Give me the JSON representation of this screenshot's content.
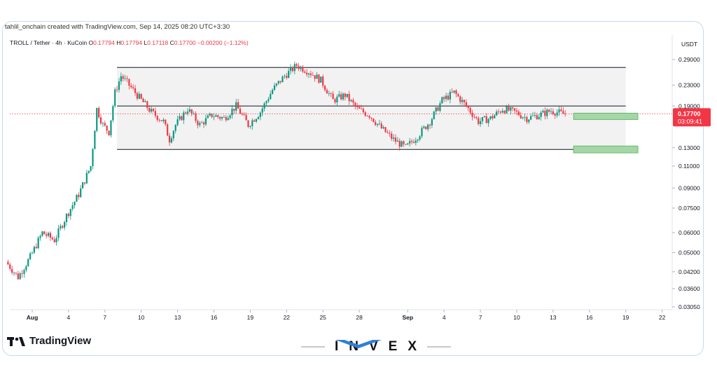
{
  "header": {
    "credit": "tahlil_onchain created with TradingView.com, Sep 14, 2025 08:20 UTC+3:30"
  },
  "legend": {
    "symbol": "TROLL / Tether · 4h · KuCoin",
    "open_label": "O",
    "open": "0.17794",
    "high_label": "H",
    "high": "0.17794",
    "low_label": "L",
    "low": "0.17118",
    "close_label": "C",
    "close": "0.17700",
    "change": "−0.00200 (−1.12%)"
  },
  "price_axis": {
    "currency": "USDT",
    "ticks": [
      "0.29000",
      "0.23000",
      "0.19000",
      "0.13000",
      "0.11000",
      "0.09000",
      "0.07500",
      "0.06000",
      "0.05000",
      "0.04200",
      "0.03600",
      "0.03050"
    ],
    "last_price": "0.17700",
    "countdown": "03:09:41"
  },
  "colors": {
    "up": "#089981",
    "down": "#f23645",
    "range_fill": "#f2f2f2",
    "target_box": "#a5d6a7"
  },
  "chart_data": {
    "type": "candlestick",
    "symbol": "TROLL / Tether",
    "timeframe": "4h",
    "exchange": "KuCoin",
    "y_scale": "log",
    "ylim": [
      0.0305,
      0.33
    ],
    "x_ticks": [
      "Aug",
      "4",
      "7",
      "10",
      "13",
      "16",
      "19",
      "22",
      "25",
      "28",
      "Sep",
      "4",
      "7",
      "10",
      "13",
      "16",
      "19",
      "22"
    ],
    "x_tick_dates": [
      "2025-08-01",
      "2025-08-04",
      "2025-08-07",
      "2025-08-10",
      "2025-08-13",
      "2025-08-16",
      "2025-08-19",
      "2025-08-22",
      "2025-08-25",
      "2025-08-28",
      "2025-09-01",
      "2025-09-04",
      "2025-09-07",
      "2025-09-10",
      "2025-09-13",
      "2025-09-16",
      "2025-09-19",
      "2025-09-22"
    ],
    "price_path": [
      {
        "date": "2025-07-30",
        "price": 0.046
      },
      {
        "date": "2025-07-31",
        "price": 0.04
      },
      {
        "date": "2025-08-01",
        "price": 0.048
      },
      {
        "date": "2025-08-02",
        "price": 0.06
      },
      {
        "date": "2025-08-03",
        "price": 0.056
      },
      {
        "date": "2025-08-04",
        "price": 0.07
      },
      {
        "date": "2025-08-05",
        "price": 0.085
      },
      {
        "date": "2025-08-06",
        "price": 0.11
      },
      {
        "date": "2025-08-06T12:00",
        "price": 0.185
      },
      {
        "date": "2025-08-07",
        "price": 0.16
      },
      {
        "date": "2025-08-07T12:00",
        "price": 0.15
      },
      {
        "date": "2025-08-08",
        "price": 0.215
      },
      {
        "date": "2025-08-08T12:00",
        "price": 0.25
      },
      {
        "date": "2025-08-09",
        "price": 0.235
      },
      {
        "date": "2025-08-10",
        "price": 0.205
      },
      {
        "date": "2025-08-11",
        "price": 0.18
      },
      {
        "date": "2025-08-12",
        "price": 0.165
      },
      {
        "date": "2025-08-12T12:00",
        "price": 0.14
      },
      {
        "date": "2025-08-13",
        "price": 0.16
      },
      {
        "date": "2025-08-14",
        "price": 0.185
      },
      {
        "date": "2025-08-15",
        "price": 0.16
      },
      {
        "date": "2025-08-16",
        "price": 0.175
      },
      {
        "date": "2025-08-17",
        "price": 0.17
      },
      {
        "date": "2025-08-18",
        "price": 0.19
      },
      {
        "date": "2025-08-19",
        "price": 0.16
      },
      {
        "date": "2025-08-20",
        "price": 0.18
      },
      {
        "date": "2025-08-21",
        "price": 0.22
      },
      {
        "date": "2025-08-22",
        "price": 0.25
      },
      {
        "date": "2025-08-23",
        "price": 0.275
      },
      {
        "date": "2025-08-24",
        "price": 0.26
      },
      {
        "date": "2025-08-25",
        "price": 0.24
      },
      {
        "date": "2025-08-26",
        "price": 0.2
      },
      {
        "date": "2025-08-27",
        "price": 0.21
      },
      {
        "date": "2025-08-28",
        "price": 0.185
      },
      {
        "date": "2025-08-29",
        "price": 0.175
      },
      {
        "date": "2025-08-30",
        "price": 0.155
      },
      {
        "date": "2025-08-31",
        "price": 0.14
      },
      {
        "date": "2025-09-01",
        "price": 0.13
      },
      {
        "date": "2025-09-02",
        "price": 0.145
      },
      {
        "date": "2025-09-03",
        "price": 0.165
      },
      {
        "date": "2025-09-04",
        "price": 0.2
      },
      {
        "date": "2025-09-05",
        "price": 0.215
      },
      {
        "date": "2025-09-06",
        "price": 0.19
      },
      {
        "date": "2025-09-07",
        "price": 0.165
      },
      {
        "date": "2025-09-08",
        "price": 0.17
      },
      {
        "date": "2025-09-09",
        "price": 0.185
      },
      {
        "date": "2025-09-10",
        "price": 0.18
      },
      {
        "date": "2025-09-11",
        "price": 0.17
      },
      {
        "date": "2025-09-12",
        "price": 0.175
      },
      {
        "date": "2025-09-13",
        "price": 0.182
      },
      {
        "date": "2025-09-14",
        "price": 0.177
      }
    ],
    "range": {
      "start": "2025-08-08",
      "end": "2025-09-19",
      "top": 0.27,
      "middle": 0.19,
      "bottom": 0.128
    },
    "target_boxes": [
      {
        "start": "2025-09-14",
        "end": "2025-09-20",
        "low": 0.168,
        "high": 0.178
      },
      {
        "start": "2025-09-14",
        "end": "2025-09-20",
        "low": 0.124,
        "high": 0.132
      }
    ],
    "last_price": 0.177
  },
  "branding": {
    "tradingview": "TradingView",
    "tv_logo_icon": "tradingview-logo-icon",
    "invex": "INVEX",
    "invex_chevron_icon": "invex-chevron-icon"
  }
}
